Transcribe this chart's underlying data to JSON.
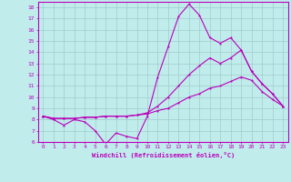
{
  "xlabel": "Windchill (Refroidissement éolien,°C)",
  "bg_color": "#c0ecec",
  "grid_color": "#a0cccc",
  "line_color": "#bb00bb",
  "x": [
    0,
    1,
    2,
    3,
    4,
    5,
    6,
    7,
    8,
    9,
    10,
    11,
    12,
    13,
    14,
    15,
    16,
    17,
    18,
    19,
    20,
    21,
    22,
    23
  ],
  "line1": [
    8.3,
    8.0,
    7.5,
    8.0,
    7.8,
    7.0,
    5.8,
    6.8,
    6.5,
    6.3,
    8.3,
    11.8,
    14.5,
    17.2,
    18.3,
    17.3,
    15.3,
    14.8,
    15.3,
    14.2,
    12.3,
    11.2,
    10.3,
    9.2
  ],
  "line2": [
    8.3,
    8.1,
    8.1,
    8.1,
    8.2,
    8.2,
    8.3,
    8.3,
    8.3,
    8.4,
    8.6,
    9.2,
    10.0,
    11.0,
    12.0,
    12.8,
    13.5,
    13.0,
    13.5,
    14.2,
    12.3,
    11.2,
    10.3,
    9.2
  ],
  "line3": [
    8.3,
    8.1,
    8.1,
    8.1,
    8.2,
    8.2,
    8.3,
    8.3,
    8.3,
    8.4,
    8.5,
    8.8,
    9.0,
    9.5,
    10.0,
    10.3,
    10.8,
    11.0,
    11.4,
    11.8,
    11.5,
    10.5,
    9.8,
    9.2
  ],
  "ylim": [
    6,
    18.5
  ],
  "xlim": [
    -0.5,
    23.5
  ],
  "yticks": [
    6,
    7,
    8,
    9,
    10,
    11,
    12,
    13,
    14,
    15,
    16,
    17,
    18
  ],
  "xticks": [
    0,
    1,
    2,
    3,
    4,
    5,
    6,
    7,
    8,
    9,
    10,
    11,
    12,
    13,
    14,
    15,
    16,
    17,
    18,
    19,
    20,
    21,
    22,
    23
  ],
  "marker": "*",
  "linewidth": 0.8,
  "markersize": 2.5
}
